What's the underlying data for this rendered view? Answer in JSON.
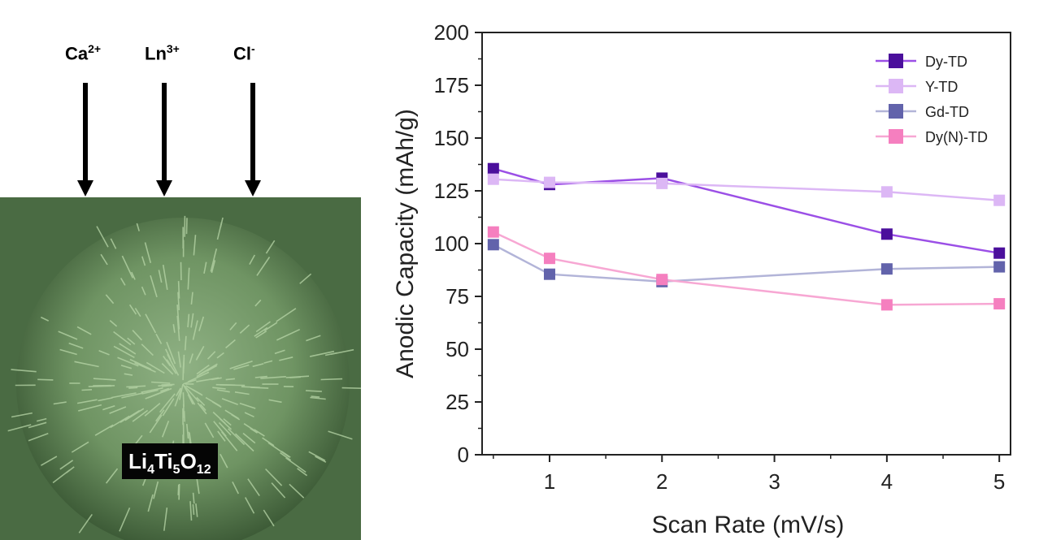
{
  "schematic": {
    "ions": [
      {
        "base": "Ca",
        "charge": "2+"
      },
      {
        "base": "Ln",
        "charge": "3+"
      },
      {
        "base": "Cl",
        "charge": "-"
      }
    ],
    "formula": [
      {
        "text": "Li",
        "sub": "4"
      },
      {
        "text": "Ti",
        "sub": "5"
      },
      {
        "text": "O",
        "sub": "12"
      }
    ],
    "micrograph_tint": "#50744a"
  },
  "chart_data": {
    "type": "line",
    "title": "",
    "xlabel": "Scan Rate (mV/s)",
    "ylabel": "Anodic Capacity (mAh/g)",
    "xlim": [
      0.4,
      5.1
    ],
    "ylim": [
      0,
      200
    ],
    "xticks": [
      1,
      2,
      3,
      4,
      5
    ],
    "yticks": [
      0,
      25,
      50,
      75,
      100,
      125,
      150,
      175,
      200
    ],
    "x": [
      0.5,
      1,
      2,
      4,
      5
    ],
    "grid": false,
    "legend_position": "top-right",
    "series": [
      {
        "name": "Dy-TD",
        "color": "#4b0f9c",
        "line_color": "#9b4fe6",
        "values": [
          135.5,
          128,
          131,
          104.5,
          95.5
        ]
      },
      {
        "name": "Y-TD",
        "color": "#dcb7f5",
        "line_color": "#dcb7f5",
        "values": [
          130.5,
          129,
          128.5,
          124.5,
          120.5
        ]
      },
      {
        "name": "Gd-TD",
        "color": "#6263ab",
        "line_color": "#b2b4d8",
        "values": [
          99.5,
          85.5,
          82,
          88,
          89
        ]
      },
      {
        "name": "Dy(N)-TD",
        "color": "#f57fbf",
        "line_color": "#f7a7d3",
        "values": [
          105.5,
          93,
          83,
          71,
          71.5
        ]
      }
    ]
  }
}
